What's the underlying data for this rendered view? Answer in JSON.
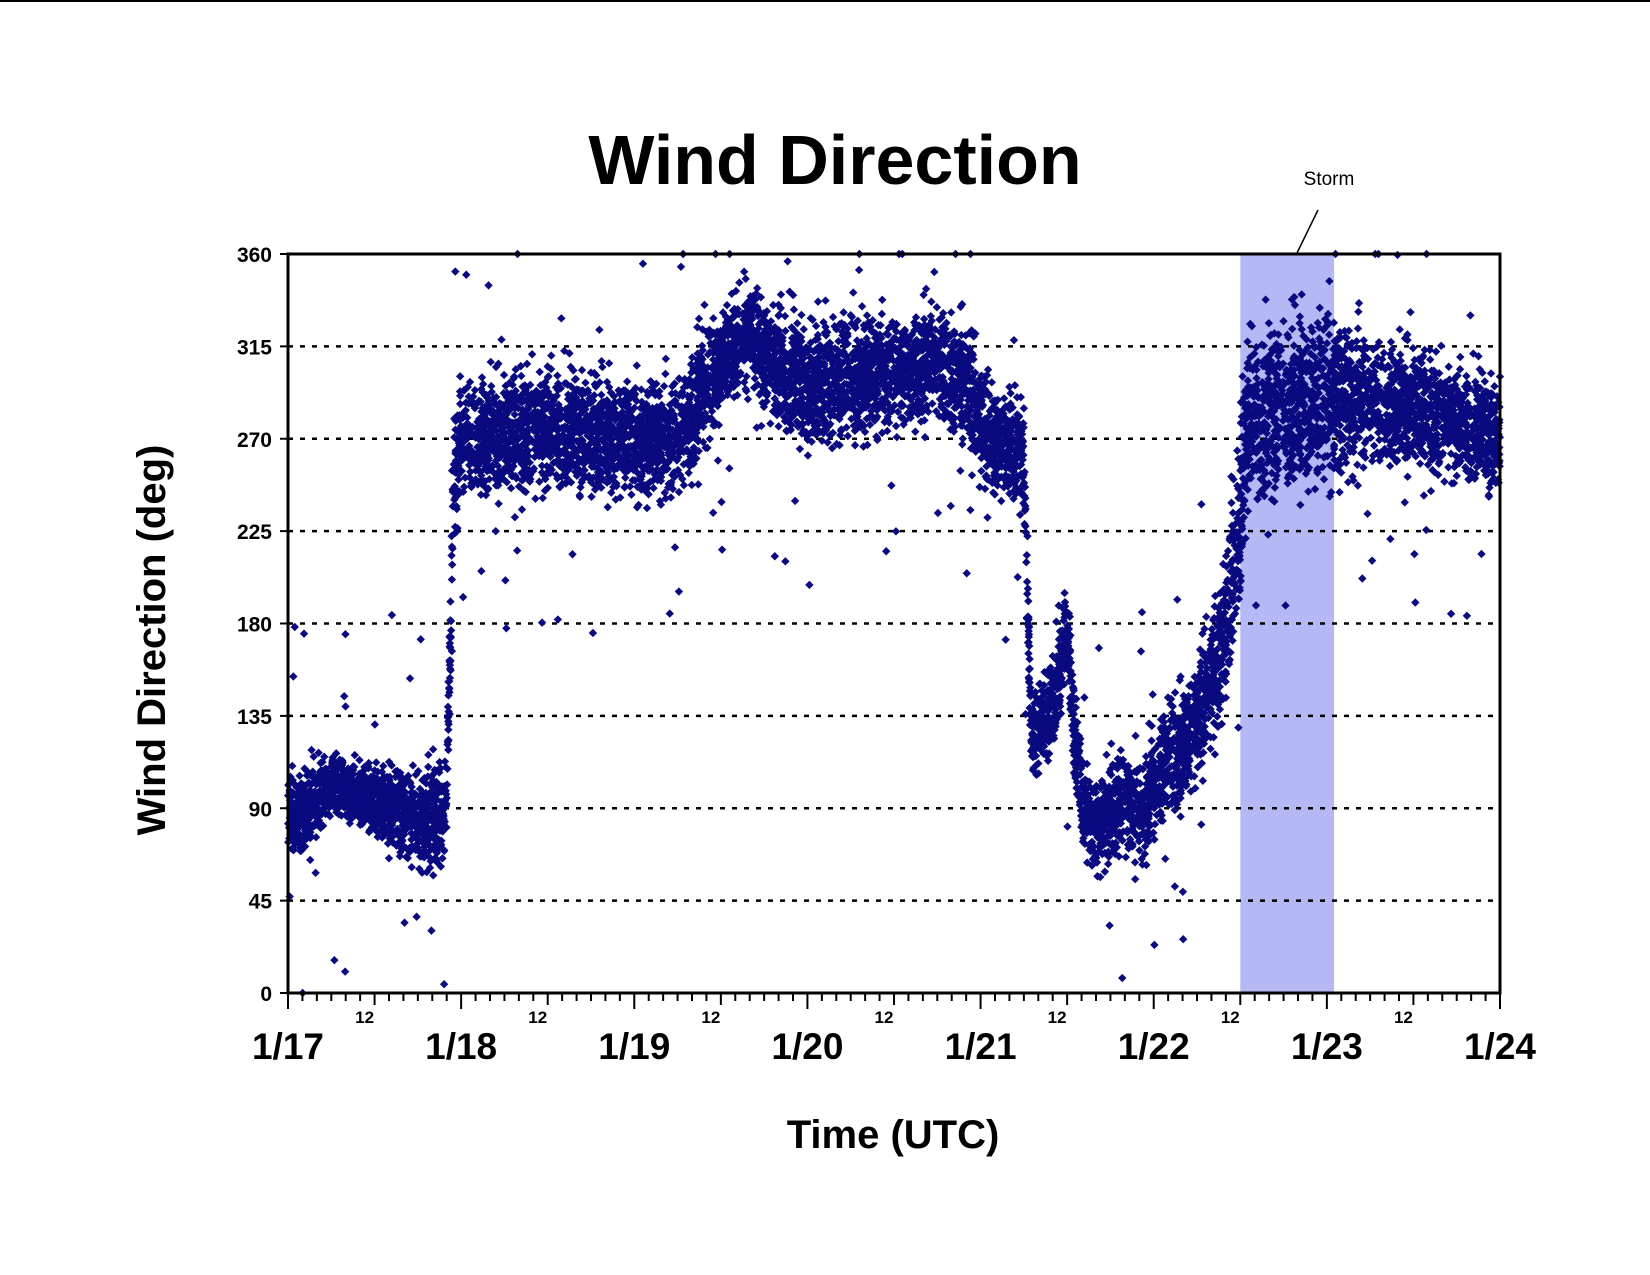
{
  "chart_data": {
    "type": "scatter",
    "title": "Wind Direction",
    "xlabel": "Time (UTC)",
    "ylabel": "Wind Direction (deg)",
    "ylim": [
      0,
      360
    ],
    "yticks": [
      0,
      45,
      90,
      135,
      180,
      225,
      270,
      315,
      360
    ],
    "y_tick_labels": [
      "0",
      "45",
      "90",
      "135",
      "180",
      "225",
      "270",
      "315",
      "360"
    ],
    "xlim": [
      "1/17 00:00",
      "1/24 00:00"
    ],
    "x_major_tick_labels": [
      "1/17",
      "1/18",
      "1/19",
      "1/20",
      "1/21",
      "1/22",
      "1/23",
      "1/24"
    ],
    "x_minor_tick_label": "12",
    "x_minor_tick_labels": [
      "12",
      "12",
      "12",
      "12",
      "12",
      "12",
      "12"
    ],
    "grid": "horizontal dotted at y ticks",
    "marker": "diamond",
    "series_color": "#0a0a80",
    "highlight": {
      "label": "Storm",
      "x_start": "1/22 12:00",
      "x_end": "1/23 01:00",
      "color": "#b4b9f5"
    },
    "series": [
      {
        "trend": [
          [
            "1/17 00:00",
            85,
            14
          ],
          [
            "1/17 02:00",
            88,
            14
          ],
          [
            "1/17 04:00",
            95,
            12
          ],
          [
            "1/17 06:00",
            100,
            10
          ],
          [
            "1/17 08:00",
            98,
            10
          ],
          [
            "1/17 10:00",
            96,
            10
          ],
          [
            "1/17 12:00",
            93,
            12
          ],
          [
            "1/17 14:00",
            90,
            14
          ],
          [
            "1/17 16:00",
            88,
            15
          ],
          [
            "1/17 18:00",
            86,
            15
          ],
          [
            "1/17 20:00",
            85,
            16
          ],
          [
            "1/17 22:00",
            92,
            18
          ],
          [
            "1/17 23:00",
            250,
            22
          ],
          [
            "1/18 00:00",
            270,
            18
          ],
          [
            "1/18 06:00",
            272,
            18
          ],
          [
            "1/18 12:00",
            275,
            20
          ],
          [
            "1/18 18:00",
            272,
            20
          ],
          [
            "1/19 00:00",
            268,
            18
          ],
          [
            "1/19 06:00",
            272,
            20
          ],
          [
            "1/19 10:00",
            290,
            20
          ],
          [
            "1/19 12:00",
            310,
            16
          ],
          [
            "1/19 16:00",
            320,
            15
          ],
          [
            "1/19 20:00",
            305,
            20
          ],
          [
            "1/20 00:00",
            295,
            22
          ],
          [
            "1/20 06:00",
            300,
            20
          ],
          [
            "1/20 12:00",
            302,
            18
          ],
          [
            "1/20 18:00",
            305,
            18
          ],
          [
            "1/20 22:00",
            300,
            18
          ],
          [
            "1/21 00:00",
            275,
            20
          ],
          [
            "1/21 04:00",
            265,
            15
          ],
          [
            "1/21 06:00",
            260,
            20
          ],
          [
            "1/21 07:00",
            125,
            12
          ],
          [
            "1/21 08:00",
            128,
            14
          ],
          [
            "1/21 10:00",
            140,
            16
          ],
          [
            "1/21 12:00",
            180,
            18
          ],
          [
            "1/21 13:00",
            125,
            15
          ],
          [
            "1/21 14:00",
            95,
            15
          ],
          [
            "1/21 16:00",
            80,
            14
          ],
          [
            "1/21 18:00",
            88,
            16
          ],
          [
            "1/21 20:00",
            95,
            16
          ],
          [
            "1/21 22:00",
            85,
            18
          ],
          [
            "1/22 00:00",
            100,
            18
          ],
          [
            "1/22 02:00",
            115,
            18
          ],
          [
            "1/22 04:00",
            120,
            18
          ],
          [
            "1/22 06:00",
            135,
            20
          ],
          [
            "1/22 08:00",
            150,
            20
          ],
          [
            "1/22 10:00",
            180,
            25
          ],
          [
            "1/22 12:00",
            230,
            30
          ],
          [
            "1/22 13:00",
            280,
            30
          ],
          [
            "1/22 18:00",
            285,
            28
          ],
          [
            "1/23 00:00",
            290,
            28
          ],
          [
            "1/23 06:00",
            288,
            20
          ],
          [
            "1/23 12:00",
            285,
            18
          ],
          [
            "1/23 18:00",
            278,
            18
          ],
          [
            "1/24 00:00",
            270,
            20
          ]
        ]
      }
    ]
  }
}
